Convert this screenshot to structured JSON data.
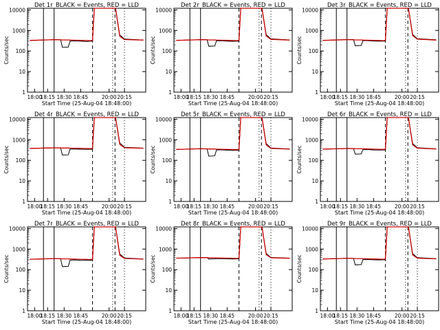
{
  "colors": {
    "events": "#000000",
    "lld": "#cc0000",
    "axis": "#000000",
    "background": "#ffffff"
  },
  "shared": {
    "xlabel": "Start Time (25-Aug-04 18:48:00)",
    "ylabel": "Counts/sec",
    "x_tick_labels": [
      "18:00",
      "18:15",
      "18:30",
      "18:45",
      "20:00",
      "20:15"
    ],
    "y_tick_labels": [
      "1",
      "10",
      "100",
      "1000",
      "10000"
    ],
    "title_template": "Det {n}r_BLACK = Events, RED = LLD"
  },
  "chart_data": [
    {
      "type": "line",
      "title": "Det 1r_BLACK = Events, RED = LLD",
      "xlabel": "",
      "ylabel": "Counts/sec",
      "y_scale": "log",
      "ylim": [
        1,
        12000
      ],
      "x_ticks": [
        "18:00",
        "18:15",
        "18:30",
        "18:45",
        "20:00",
        "20:15"
      ],
      "series": [
        {
          "color": "black",
          "values": [
            330,
            330,
            340,
            345,
            350,
            360,
            350,
            150,
            155,
            300,
            310,
            300,
            290,
            300,
            300,
            12000,
            12000,
            12000,
            12000,
            12000,
            12000,
            12000,
            600,
            380,
            340
          ]
        },
        {
          "color": "red",
          "values": [
            330,
            335,
            340,
            345,
            350,
            355,
            350,
            345,
            345,
            340,
            335,
            330,
            325,
            320,
            330,
            12000,
            12000,
            12000,
            12000,
            12000,
            12000,
            12000,
            520,
            360,
            340
          ]
        }
      ],
      "vertical_lines": [
        {
          "at": "solid",
          "x": [
            0.07,
            0.17
          ]
        },
        {
          "at": "dashed",
          "x": [
            0.66,
            0.79
          ]
        },
        {
          "at": "dotted",
          "x": [
            0.8,
            0.89
          ]
        }
      ]
    },
    {
      "type": "line",
      "title": "Det 2r_BLACK = Events, RED = LLD",
      "xlabel": "",
      "ylabel": "Counts/sec",
      "y_scale": "log",
      "ylim": [
        1,
        12000
      ],
      "x_ticks": [
        "18:00",
        "18:15",
        "18:30",
        "18:45",
        "20:00",
        "20:15"
      ],
      "series": [
        {
          "color": "black",
          "values": [
            330,
            335,
            340,
            345,
            350,
            360,
            355,
            170,
            175,
            310,
            315,
            300,
            295,
            300,
            300,
            12000,
            12000,
            12000,
            12000,
            12000,
            12000,
            12000,
            620,
            390,
            345
          ]
        },
        {
          "color": "red",
          "values": [
            330,
            335,
            340,
            345,
            350,
            355,
            350,
            345,
            345,
            340,
            335,
            330,
            325,
            320,
            330,
            12000,
            12000,
            12000,
            12000,
            12000,
            12000,
            12000,
            540,
            370,
            340
          ]
        }
      ]
    },
    {
      "type": "line",
      "title": "Det 3r_BLACK = Events, RED = LLD",
      "xlabel": "",
      "ylabel": "Counts/sec",
      "y_scale": "log",
      "ylim": [
        1,
        12000
      ],
      "x_ticks": [
        "18:00",
        "18:15",
        "18:30",
        "18:45",
        "20:00",
        "20:15"
      ],
      "series": [
        {
          "color": "black",
          "values": [
            330,
            335,
            345,
            350,
            355,
            365,
            360,
            180,
            185,
            320,
            320,
            305,
            300,
            305,
            305,
            12000,
            12000,
            12000,
            12000,
            12000,
            12000,
            12000,
            640,
            400,
            350
          ]
        },
        {
          "color": "red",
          "values": [
            330,
            335,
            340,
            345,
            350,
            355,
            350,
            345,
            345,
            340,
            335,
            330,
            325,
            320,
            330,
            12000,
            12000,
            12000,
            12000,
            12000,
            12000,
            12000,
            560,
            380,
            340
          ]
        }
      ]
    },
    {
      "type": "line",
      "title": "Det 4r_BLACK = Events, RED = LLD",
      "xlabel": "",
      "ylabel": "Counts/sec",
      "y_scale": "log",
      "ylim": [
        1,
        12000
      ],
      "x_ticks": [
        "18:00",
        "18:15",
        "18:30",
        "18:45",
        "20:00",
        "20:15"
      ],
      "series": [
        {
          "color": "black",
          "values": [
            380,
            385,
            390,
            395,
            400,
            410,
            400,
            180,
            185,
            350,
            355,
            345,
            340,
            345,
            345,
            12000,
            12000,
            12000,
            12000,
            12000,
            12000,
            12000,
            700,
            430,
            390
          ]
        },
        {
          "color": "red",
          "values": [
            380,
            385,
            390,
            395,
            400,
            405,
            400,
            395,
            395,
            390,
            385,
            380,
            375,
            370,
            380,
            12000,
            12000,
            12000,
            12000,
            12000,
            12000,
            12000,
            600,
            410,
            385
          ]
        }
      ]
    },
    {
      "type": "line",
      "title": "Det 5r_BLACK = Events, RED = LLD",
      "xlabel": "",
      "ylabel": "Counts/sec",
      "y_scale": "log",
      "ylim": [
        1,
        12000
      ],
      "x_ticks": [
        "18:00",
        "18:15",
        "18:30",
        "18:45",
        "20:00",
        "20:15"
      ],
      "series": [
        {
          "color": "black",
          "values": [
            340,
            345,
            350,
            355,
            360,
            370,
            360,
            160,
            165,
            320,
            325,
            310,
            305,
            310,
            310,
            12000,
            12000,
            12000,
            12000,
            12000,
            12000,
            12000,
            650,
            400,
            355
          ]
        },
        {
          "color": "red",
          "values": [
            340,
            345,
            350,
            355,
            360,
            365,
            360,
            355,
            355,
            350,
            345,
            340,
            335,
            330,
            340,
            12000,
            12000,
            12000,
            12000,
            12000,
            12000,
            12000,
            560,
            380,
            350
          ]
        }
      ]
    },
    {
      "type": "line",
      "title": "Det 6r_BLACK = Events, RED = LLD",
      "xlabel": "",
      "ylabel": "Counts/sec",
      "y_scale": "log",
      "ylim": [
        1,
        12000
      ],
      "x_ticks": [
        "18:00",
        "18:15",
        "18:30",
        "18:45",
        "20:00",
        "20:15"
      ],
      "series": [
        {
          "color": "black",
          "values": [
            350,
            355,
            360,
            365,
            370,
            380,
            370,
            200,
            205,
            330,
            335,
            320,
            315,
            320,
            320,
            12000,
            12000,
            12000,
            12000,
            12000,
            12000,
            12000,
            660,
            410,
            360
          ]
        },
        {
          "color": "red",
          "values": [
            350,
            355,
            360,
            365,
            370,
            375,
            370,
            365,
            365,
            360,
            355,
            350,
            345,
            340,
            350,
            12000,
            12000,
            12000,
            12000,
            12000,
            12000,
            12000,
            570,
            390,
            355
          ]
        }
      ]
    },
    {
      "type": "line",
      "title": "Det 7r_BLACK = Events, RED = LLD",
      "xlabel": "",
      "ylabel": "Counts/sec",
      "y_scale": "log",
      "ylim": [
        1,
        12000
      ],
      "x_ticks": [
        "18:00",
        "18:15",
        "18:30",
        "18:45",
        "20:00",
        "20:15"
      ],
      "series": [
        {
          "color": "black",
          "values": [
            320,
            325,
            330,
            335,
            340,
            350,
            340,
            140,
            145,
            290,
            295,
            285,
            280,
            285,
            285,
            12000,
            12000,
            12000,
            12000,
            12000,
            12000,
            12000,
            580,
            370,
            330
          ]
        },
        {
          "color": "red",
          "values": [
            320,
            325,
            330,
            335,
            340,
            345,
            340,
            335,
            335,
            330,
            325,
            320,
            315,
            310,
            320,
            12000,
            12000,
            12000,
            12000,
            12000,
            12000,
            12000,
            500,
            350,
            325
          ]
        }
      ]
    },
    {
      "type": "line",
      "title": "Det 8r_BLACK = Events, RED = LLD",
      "xlabel": "",
      "ylabel": "Counts/sec",
      "y_scale": "log",
      "ylim": [
        1,
        12000
      ],
      "x_ticks": [
        "18:00",
        "18:15",
        "18:30",
        "18:45",
        "20:00",
        "20:15"
      ],
      "series": [
        {
          "color": "black",
          "values": [
            360,
            365,
            370,
            375,
            380,
            390,
            385,
            330,
            335,
            340,
            345,
            335,
            330,
            335,
            335,
            12000,
            12000,
            12000,
            12000,
            12000,
            12000,
            12000,
            610,
            390,
            360
          ]
        },
        {
          "color": "red",
          "values": [
            360,
            365,
            370,
            375,
            380,
            385,
            380,
            375,
            375,
            370,
            365,
            360,
            355,
            350,
            360,
            12000,
            12000,
            12000,
            12000,
            12000,
            12000,
            12000,
            540,
            375,
            355
          ]
        }
      ]
    },
    {
      "type": "line",
      "title": "Det 9r_BLACK = Events, RED = LLD",
      "xlabel": "",
      "ylabel": "Counts/sec",
      "y_scale": "log",
      "ylim": [
        1,
        12000
      ],
      "x_ticks": [
        "18:00",
        "18:15",
        "18:30",
        "18:45",
        "20:00",
        "20:15"
      ],
      "series": [
        {
          "color": "black",
          "values": [
            330,
            335,
            340,
            345,
            350,
            360,
            350,
            170,
            175,
            305,
            310,
            300,
            295,
            300,
            300,
            12000,
            12000,
            12000,
            12000,
            12000,
            12000,
            12000,
            600,
            385,
            340
          ]
        },
        {
          "color": "red",
          "values": [
            330,
            335,
            340,
            345,
            350,
            355,
            350,
            345,
            345,
            340,
            335,
            330,
            325,
            320,
            330,
            12000,
            12000,
            12000,
            12000,
            12000,
            12000,
            12000,
            520,
            360,
            335
          ]
        }
      ]
    }
  ]
}
